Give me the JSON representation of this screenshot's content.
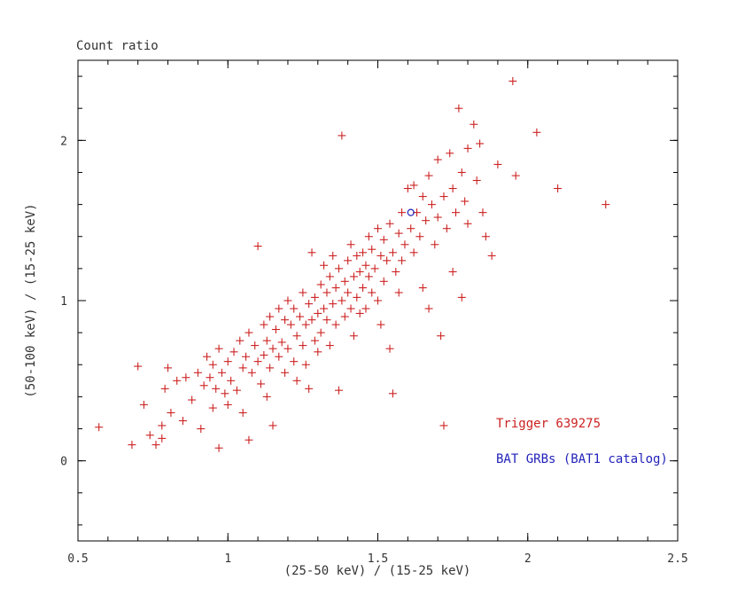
{
  "chart_data": {
    "type": "scatter",
    "title": "Count ratio",
    "xlabel": "(25-50 keV) / (15-25 keV)",
    "ylabel": "(50-100 keV) / (15-25 keV)",
    "xlim": [
      0.5,
      2.5
    ],
    "ylim": [
      -0.5,
      2.5
    ],
    "x_ticks": [
      0.5,
      1,
      1.5,
      2,
      2.5
    ],
    "x_tick_labels": [
      "0.5",
      "1",
      "1.5",
      "2",
      "2.5"
    ],
    "y_ticks": [
      0,
      1,
      2
    ],
    "y_tick_labels": [
      "0",
      "1",
      "2"
    ],
    "x_minor_step": 0.1,
    "y_minor_step": 0.2,
    "grid": false,
    "frame_color": "#000000",
    "legend": {
      "line1": {
        "text": "Trigger 639275",
        "color": "#cc2222"
      },
      "line2": {
        "text": "BAT GRBs (BAT1 catalog)",
        "color": "#2222bb"
      }
    },
    "series": [
      {
        "name": "red-crosses",
        "marker": "cross",
        "color": "#cc2222",
        "points": [
          [
            0.57,
            0.21
          ],
          [
            0.68,
            0.1
          ],
          [
            0.7,
            0.59
          ],
          [
            0.72,
            0.35
          ],
          [
            0.74,
            0.16
          ],
          [
            0.76,
            0.1
          ],
          [
            0.78,
            0.22
          ],
          [
            0.79,
            0.45
          ],
          [
            0.8,
            0.58
          ],
          [
            0.81,
            0.3
          ],
          [
            0.83,
            0.5
          ],
          [
            0.85,
            0.25
          ],
          [
            0.78,
            0.14
          ],
          [
            0.86,
            0.52
          ],
          [
            0.88,
            0.38
          ],
          [
            0.9,
            0.55
          ],
          [
            0.91,
            0.2
          ],
          [
            0.92,
            0.47
          ],
          [
            0.93,
            0.65
          ],
          [
            0.94,
            0.52
          ],
          [
            0.95,
            0.33
          ],
          [
            0.95,
            0.6
          ],
          [
            0.96,
            0.45
          ],
          [
            0.97,
            0.7
          ],
          [
            0.97,
            0.08
          ],
          [
            0.98,
            0.55
          ],
          [
            0.99,
            0.42
          ],
          [
            1.0,
            0.62
          ],
          [
            1.0,
            0.35
          ],
          [
            1.01,
            0.5
          ],
          [
            1.02,
            0.68
          ],
          [
            1.03,
            0.44
          ],
          [
            1.04,
            0.75
          ],
          [
            1.05,
            0.58
          ],
          [
            1.05,
            0.3
          ],
          [
            1.06,
            0.65
          ],
          [
            1.07,
            0.8
          ],
          [
            1.07,
            0.13
          ],
          [
            1.08,
            0.55
          ],
          [
            1.09,
            0.72
          ],
          [
            1.1,
            1.34
          ],
          [
            1.1,
            0.62
          ],
          [
            1.11,
            0.48
          ],
          [
            1.12,
            0.85
          ],
          [
            1.12,
            0.66
          ],
          [
            1.13,
            0.75
          ],
          [
            1.13,
            0.4
          ],
          [
            1.14,
            0.9
          ],
          [
            1.14,
            0.58
          ],
          [
            1.15,
            0.7
          ],
          [
            1.15,
            0.22
          ],
          [
            1.16,
            0.82
          ],
          [
            1.17,
            0.65
          ],
          [
            1.17,
            0.95
          ],
          [
            1.18,
            0.74
          ],
          [
            1.19,
            0.88
          ],
          [
            1.19,
            0.55
          ],
          [
            1.2,
            1.0
          ],
          [
            1.2,
            0.7
          ],
          [
            1.21,
            0.85
          ],
          [
            1.22,
            0.62
          ],
          [
            1.22,
            0.95
          ],
          [
            1.23,
            0.78
          ],
          [
            1.23,
            0.5
          ],
          [
            1.24,
            0.9
          ],
          [
            1.25,
            1.05
          ],
          [
            1.25,
            0.72
          ],
          [
            1.26,
            0.85
          ],
          [
            1.26,
            0.6
          ],
          [
            1.27,
            0.98
          ],
          [
            1.27,
            0.45
          ],
          [
            1.28,
            0.88
          ],
          [
            1.28,
            1.3
          ],
          [
            1.29,
            0.75
          ],
          [
            1.29,
            1.02
          ],
          [
            1.3,
            0.92
          ],
          [
            1.3,
            0.68
          ],
          [
            1.31,
            1.1
          ],
          [
            1.31,
            0.8
          ],
          [
            1.32,
            0.95
          ],
          [
            1.32,
            1.22
          ],
          [
            1.33,
            0.88
          ],
          [
            1.33,
            1.05
          ],
          [
            1.34,
            0.72
          ],
          [
            1.34,
            1.15
          ],
          [
            1.35,
            0.98
          ],
          [
            1.35,
            1.28
          ],
          [
            1.36,
            0.85
          ],
          [
            1.36,
            1.08
          ],
          [
            1.37,
            1.2
          ],
          [
            1.37,
            0.44
          ],
          [
            1.38,
            2.03
          ],
          [
            1.38,
            1.0
          ],
          [
            1.39,
            1.12
          ],
          [
            1.39,
            0.9
          ],
          [
            1.4,
            1.25
          ],
          [
            1.4,
            1.05
          ],
          [
            1.41,
            0.95
          ],
          [
            1.41,
            1.35
          ],
          [
            1.42,
            1.15
          ],
          [
            1.42,
            0.78
          ],
          [
            1.43,
            1.28
          ],
          [
            1.43,
            1.02
          ],
          [
            1.44,
            1.18
          ],
          [
            1.44,
            0.92
          ],
          [
            1.45,
            1.3
          ],
          [
            1.45,
            1.08
          ],
          [
            1.46,
            1.22
          ],
          [
            1.46,
            0.95
          ],
          [
            1.47,
            1.4
          ],
          [
            1.47,
            1.15
          ],
          [
            1.48,
            1.05
          ],
          [
            1.48,
            1.32
          ],
          [
            1.49,
            1.2
          ],
          [
            1.5,
            1.45
          ],
          [
            1.5,
            1.0
          ],
          [
            1.51,
            1.28
          ],
          [
            1.51,
            0.85
          ],
          [
            1.52,
            1.38
          ],
          [
            1.52,
            1.12
          ],
          [
            1.53,
            1.25
          ],
          [
            1.54,
            1.48
          ],
          [
            1.54,
            0.7
          ],
          [
            1.55,
            1.3
          ],
          [
            1.55,
            0.42
          ],
          [
            1.56,
            1.18
          ],
          [
            1.57,
            1.42
          ],
          [
            1.57,
            1.05
          ],
          [
            1.58,
            1.55
          ],
          [
            1.58,
            1.25
          ],
          [
            1.59,
            1.35
          ],
          [
            1.6,
            1.7
          ],
          [
            1.61,
            1.45
          ],
          [
            1.62,
            1.72
          ],
          [
            1.62,
            1.3
          ],
          [
            1.63,
            1.55
          ],
          [
            1.64,
            1.4
          ],
          [
            1.65,
            1.65
          ],
          [
            1.65,
            1.08
          ],
          [
            1.66,
            1.5
          ],
          [
            1.67,
            1.78
          ],
          [
            1.67,
            0.95
          ],
          [
            1.68,
            1.6
          ],
          [
            1.69,
            1.35
          ],
          [
            1.7,
            1.88
          ],
          [
            1.7,
            1.52
          ],
          [
            1.71,
            0.78
          ],
          [
            1.72,
            1.65
          ],
          [
            1.72,
            0.22
          ],
          [
            1.73,
            1.45
          ],
          [
            1.74,
            1.92
          ],
          [
            1.75,
            1.7
          ],
          [
            1.75,
            1.18
          ],
          [
            1.76,
            1.55
          ],
          [
            1.77,
            2.2
          ],
          [
            1.78,
            1.8
          ],
          [
            1.78,
            1.02
          ],
          [
            1.79,
            1.62
          ],
          [
            1.8,
            1.95
          ],
          [
            1.8,
            1.48
          ],
          [
            1.82,
            2.1
          ],
          [
            1.83,
            1.75
          ],
          [
            1.84,
            1.98
          ],
          [
            1.85,
            1.55
          ],
          [
            1.86,
            1.4
          ],
          [
            1.88,
            1.28
          ],
          [
            1.9,
            1.85
          ],
          [
            1.95,
            2.37
          ],
          [
            1.96,
            1.78
          ],
          [
            2.03,
            2.05
          ],
          [
            2.1,
            1.7
          ],
          [
            2.26,
            1.6
          ]
        ]
      },
      {
        "name": "blue-circle",
        "marker": "circle",
        "color": "#2222bb",
        "points": [
          [
            1.61,
            1.55
          ]
        ]
      }
    ]
  }
}
